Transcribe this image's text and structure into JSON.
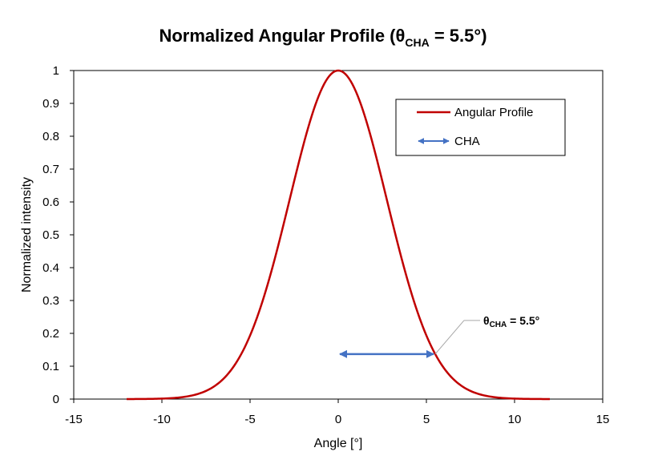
{
  "chart_data": {
    "type": "line",
    "title": {
      "main": "Normalized Angular Profile (θ",
      "sub": "CHA",
      "rest": " = 5.5°)"
    },
    "xlabel": "Angle [°]",
    "ylabel": "Normalized intensity",
    "xlim": [
      -15,
      15
    ],
    "ylim": [
      0,
      1
    ],
    "xticks": [
      "-15",
      "-10",
      "-5",
      "0",
      "5",
      "10",
      "15"
    ],
    "yticks": [
      "0",
      "0.1",
      "0.2",
      "0.3",
      "0.4",
      "0.5",
      "0.6",
      "0.7",
      "0.8",
      "0.9",
      "1"
    ],
    "grid": false,
    "legend_position": "top-right",
    "series": [
      {
        "name": "Angular Profile",
        "color": "#C00000",
        "x": [
          -12,
          -11,
          -10,
          -9,
          -8,
          -7,
          -6,
          -5,
          -4.5,
          -4,
          -3.5,
          -3,
          -2.5,
          -2,
          -1.5,
          -1,
          -0.5,
          0,
          0.5,
          1,
          1.5,
          2,
          2.5,
          3,
          3.5,
          4,
          4.5,
          5,
          5.5,
          6,
          7,
          8,
          9,
          10,
          11,
          12
        ],
        "y": [
          0.0001,
          0.0005,
          0.0019,
          0.0064,
          0.019,
          0.051,
          0.113,
          0.212,
          0.285,
          0.371,
          0.467,
          0.574,
          0.678,
          0.779,
          0.868,
          0.936,
          0.984,
          1.0,
          0.984,
          0.936,
          0.868,
          0.779,
          0.678,
          0.574,
          0.467,
          0.371,
          0.285,
          0.212,
          0.137,
          0.113,
          0.051,
          0.019,
          0.0064,
          0.0019,
          0.0005,
          0.0001
        ]
      },
      {
        "name": "CHA",
        "color": "#4472C4",
        "x": [
          0,
          5.5
        ],
        "y": [
          0.137,
          0.137
        ],
        "style": "double-arrow"
      }
    ],
    "annotation": {
      "main": "θ",
      "sub": "CHA",
      "rest": " = 5.5°",
      "point": [
        5.5,
        0.137
      ]
    }
  }
}
